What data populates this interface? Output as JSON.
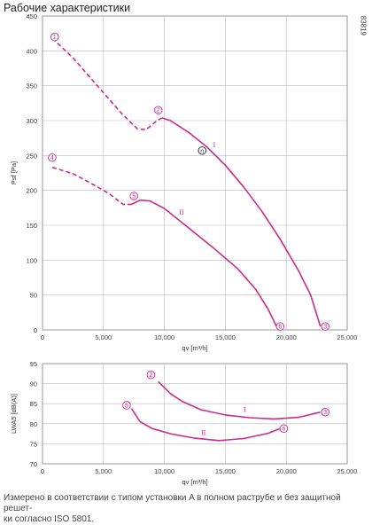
{
  "page_title": "Рабочие характеристики",
  "figure_code": "83819",
  "footnote": "Измерено в соответствии с типом установки A в полном раструбе и без защитной решет-\nки согласно ISO 5801.",
  "colors": {
    "curve": "#cc2a8a",
    "grid": "#b9b9b9",
    "axis": "#888888"
  },
  "chart_data": [
    {
      "type": "line",
      "xlabel": "qv [m³/h]",
      "ylabel": "Psf [Pa]",
      "xlim": [
        0,
        25000
      ],
      "ylim": [
        0,
        450
      ],
      "x_ticks": [
        "0",
        "5,000",
        "10,000",
        "15,000",
        "20,000",
        "25,000"
      ],
      "y_ticks": [
        "0",
        "50",
        "100",
        "150",
        "200",
        "250",
        "300",
        "350",
        "400",
        "450"
      ],
      "grid": true,
      "series": [
        {
          "name": "I",
          "style": "dashed",
          "points": [
            [
              800,
              418
            ],
            [
              2500,
              390
            ],
            [
              4500,
              350
            ],
            [
              6500,
              310
            ],
            [
              7800,
              288
            ],
            [
              8500,
              287
            ],
            [
              9400,
              300
            ],
            [
              9800,
              304
            ]
          ]
        },
        {
          "name": "I",
          "style": "solid",
          "points": [
            [
              9800,
              304
            ],
            [
              10500,
              300
            ],
            [
              12000,
              283
            ],
            [
              13500,
              262
            ],
            [
              15000,
              236
            ],
            [
              16500,
              205
            ],
            [
              18000,
              170
            ],
            [
              19500,
              130
            ],
            [
              21000,
              85
            ],
            [
              22000,
              50
            ],
            [
              22800,
              5
            ]
          ]
        },
        {
          "name": "II",
          "style": "dashed",
          "points": [
            [
              800,
              233
            ],
            [
              2500,
              224
            ],
            [
              4000,
              210
            ],
            [
              5500,
              195
            ],
            [
              6600,
              180
            ],
            [
              7300,
              180
            ]
          ]
        },
        {
          "name": "II",
          "style": "solid",
          "points": [
            [
              7300,
              180
            ],
            [
              8000,
              186
            ],
            [
              8800,
              185
            ],
            [
              10000,
              174
            ],
            [
              12000,
              146
            ],
            [
              14000,
              118
            ],
            [
              16000,
              88
            ],
            [
              17500,
              58
            ],
            [
              18500,
              30
            ],
            [
              19200,
              5
            ]
          ]
        }
      ],
      "markers": [
        {
          "label": "1",
          "x": 1000,
          "y": 420
        },
        {
          "label": "2",
          "x": 9500,
          "y": 315
        },
        {
          "label": "3",
          "x": 23200,
          "y": 5
        },
        {
          "label": "4",
          "x": 800,
          "y": 247
        },
        {
          "label": "5",
          "x": 7500,
          "y": 192
        },
        {
          "label": "6",
          "x": 19500,
          "y": 5
        },
        {
          "label": "n",
          "x": 13100,
          "y": 257,
          "style": "black"
        }
      ],
      "curve_labels": [
        {
          "label": "I",
          "x": 14100,
          "y": 262
        },
        {
          "label": "II",
          "x": 11400,
          "y": 165
        }
      ]
    },
    {
      "type": "line",
      "xlabel": "qv [m³/h]",
      "ylabel": "LWA5 [dB(A)]",
      "xlim": [
        0,
        25000
      ],
      "ylim": [
        70,
        95
      ],
      "x_ticks": [
        "0",
        "5,000",
        "10,000",
        "15,000",
        "20,000",
        "25,000"
      ],
      "y_ticks": [
        "70",
        "75",
        "80",
        "85",
        "90",
        "95"
      ],
      "grid": true,
      "series": [
        {
          "name": "I",
          "style": "solid",
          "points": [
            [
              9500,
              90.5
            ],
            [
              10500,
              87.5
            ],
            [
              11500,
              85.5
            ],
            [
              13000,
              83.5
            ],
            [
              15000,
              82.2
            ],
            [
              17000,
              81.5
            ],
            [
              19000,
              81.2
            ],
            [
              21000,
              81.6
            ],
            [
              22800,
              82.9
            ]
          ]
        },
        {
          "name": "II",
          "style": "solid",
          "points": [
            [
              7300,
              83.8
            ],
            [
              8000,
              80.5
            ],
            [
              9000,
              78.8
            ],
            [
              10500,
              77.5
            ],
            [
              12500,
              76.4
            ],
            [
              14500,
              75.8
            ],
            [
              16500,
              76.3
            ],
            [
              18500,
              77.6
            ],
            [
              19500,
              78.8
            ]
          ]
        }
      ],
      "markers": [
        {
          "label": "2",
          "x": 8900,
          "y": 92.2
        },
        {
          "label": "3",
          "x": 23200,
          "y": 82.9
        },
        {
          "label": "5",
          "x": 6900,
          "y": 84.6
        },
        {
          "label": "6",
          "x": 19800,
          "y": 78.8
        }
      ],
      "curve_labels": [
        {
          "label": "I",
          "x": 16600,
          "y": 82.9
        },
        {
          "label": "II",
          "x": 13200,
          "y": 77.2
        }
      ]
    }
  ]
}
